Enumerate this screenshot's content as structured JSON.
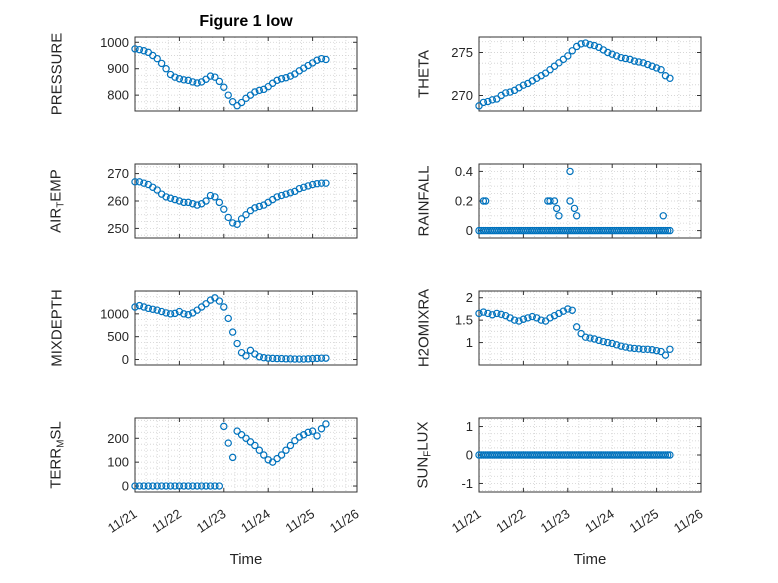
{
  "title": "Figure 1 low",
  "xlabel": "Time",
  "colors": {
    "marker": "#0072BD",
    "axis": "#262626",
    "grid": "#d6d6d6",
    "box": "#333333"
  },
  "x_axis": {
    "lim": [
      0,
      5
    ],
    "ticks": [
      0,
      1,
      2,
      3,
      4,
      5
    ],
    "tick_labels": [
      "11/21",
      "11/22",
      "11/23",
      "11/24",
      "11/25",
      "11/26"
    ],
    "minor_step": 0.25
  },
  "chart_data": [
    {
      "name": "pressure",
      "type": "scatter",
      "row": 0,
      "col": 0,
      "ylabel_parts": [
        [
          "PRESSURE",
          false
        ]
      ],
      "ylim": [
        740,
        1020
      ],
      "yticks": [
        800,
        900,
        1000
      ],
      "x_start": 0,
      "x_step": 0.1,
      "values": [
        975,
        972,
        968,
        962,
        950,
        938,
        920,
        900,
        878,
        868,
        862,
        858,
        856,
        850,
        846,
        850,
        860,
        872,
        868,
        852,
        830,
        800,
        775,
        760,
        772,
        788,
        800,
        812,
        818,
        822,
        832,
        845,
        856,
        862,
        866,
        872,
        880,
        892,
        902,
        912,
        922,
        932,
        938,
        935
      ]
    },
    {
      "name": "theta",
      "type": "scatter",
      "row": 0,
      "col": 1,
      "ylabel_parts": [
        [
          "THETA",
          false
        ]
      ],
      "ylim": [
        268.2,
        276.8
      ],
      "yticks": [
        270,
        275
      ],
      "x_start": 0,
      "x_step": 0.1,
      "values": [
        268.8,
        269.2,
        269.3,
        269.5,
        269.6,
        270,
        270.3,
        270.4,
        270.6,
        270.9,
        271.2,
        271.4,
        271.7,
        272,
        272.3,
        272.6,
        273,
        273.4,
        273.8,
        274.2,
        274.6,
        275.2,
        275.7,
        276,
        276.1,
        275.9,
        275.8,
        275.6,
        275.3,
        275,
        274.8,
        274.6,
        274.4,
        274.3,
        274.2,
        274,
        273.9,
        273.8,
        273.6,
        273.4,
        273.2,
        273,
        272.3,
        272
      ]
    },
    {
      "name": "air-temp",
      "type": "scatter",
      "row": 1,
      "col": 0,
      "ylabel_parts": [
        [
          "AIR",
          false
        ],
        [
          "T",
          true
        ],
        [
          "EMP",
          false
        ]
      ],
      "ylim": [
        246.5,
        273.5
      ],
      "yticks": [
        250,
        260,
        270
      ],
      "x_start": 0,
      "x_step": 0.1,
      "values": [
        267,
        267,
        266.5,
        266,
        265,
        264,
        262.5,
        261.5,
        261,
        260.5,
        260,
        259.5,
        259.5,
        259,
        258.5,
        259,
        260,
        262,
        261.5,
        259.5,
        257,
        254,
        252,
        251.5,
        253.5,
        255,
        256.5,
        257.5,
        258,
        258.5,
        259.5,
        260.5,
        261.5,
        262,
        262.5,
        263,
        263.5,
        264.5,
        265,
        265.5,
        266,
        266.3,
        266.5,
        266.5
      ]
    },
    {
      "name": "rainfall",
      "type": "scatter",
      "row": 1,
      "col": 1,
      "ylabel_parts": [
        [
          "RAINFALL",
          false
        ]
      ],
      "ylim": [
        -0.05,
        0.45
      ],
      "yticks": [
        0,
        0.2,
        0.4
      ],
      "zero_fill": {
        "from": 0,
        "to": 4.3,
        "step": 0.05
      },
      "points": [
        [
          0.1,
          0.2
        ],
        [
          0.15,
          0.2
        ],
        [
          1.55,
          0.2
        ],
        [
          1.6,
          0.2
        ],
        [
          1.7,
          0.2
        ],
        [
          1.75,
          0.15
        ],
        [
          1.8,
          0.1
        ],
        [
          2.05,
          0.4
        ],
        [
          2.05,
          0.2
        ],
        [
          2.15,
          0.15
        ],
        [
          2.2,
          0.1
        ],
        [
          4.15,
          0.1
        ]
      ]
    },
    {
      "name": "mixdepth",
      "type": "scatter",
      "row": 2,
      "col": 0,
      "ylabel_parts": [
        [
          "MIXDEPTH",
          false
        ]
      ],
      "ylim": [
        -120,
        1500
      ],
      "yticks": [
        0,
        500,
        1000
      ],
      "x_start": 0,
      "x_step": 0.1,
      "values": [
        1150,
        1180,
        1150,
        1120,
        1100,
        1080,
        1050,
        1020,
        1000,
        1010,
        1050,
        1000,
        980,
        1020,
        1080,
        1150,
        1220,
        1300,
        1350,
        1280,
        1150,
        900,
        600,
        350,
        150,
        80,
        200,
        120,
        60,
        40,
        30,
        25,
        20,
        20,
        15,
        15,
        10,
        10,
        10,
        15,
        20,
        25,
        30,
        30
      ]
    },
    {
      "name": "h2omixra",
      "type": "scatter",
      "row": 2,
      "col": 1,
      "ylabel_parts": [
        [
          "H2OMIXRA",
          false
        ]
      ],
      "ylim": [
        0.5,
        2.15
      ],
      "yticks": [
        1,
        1.5,
        2
      ],
      "x_start": 0,
      "x_step": 0.1,
      "values": [
        1.65,
        1.68,
        1.65,
        1.62,
        1.65,
        1.63,
        1.6,
        1.55,
        1.5,
        1.48,
        1.52,
        1.55,
        1.58,
        1.55,
        1.5,
        1.48,
        1.55,
        1.6,
        1.65,
        1.7,
        1.75,
        1.72,
        1.35,
        1.2,
        1.12,
        1.1,
        1.08,
        1.05,
        1.02,
        1,
        0.98,
        0.95,
        0.92,
        0.9,
        0.88,
        0.87,
        0.86,
        0.85,
        0.85,
        0.84,
        0.82,
        0.8,
        0.72,
        0.85
      ]
    },
    {
      "name": "terr-msl",
      "type": "scatter",
      "row": 3,
      "col": 0,
      "ylabel_parts": [
        [
          "TERR",
          false
        ],
        [
          "M",
          true
        ],
        [
          "SL",
          false
        ]
      ],
      "ylim": [
        -25,
        285
      ],
      "yticks": [
        0,
        100,
        200
      ],
      "x_start": 0,
      "x_step": 0.1,
      "values": [
        0,
        0,
        0,
        0,
        0,
        0,
        0,
        0,
        0,
        0,
        0,
        0,
        0,
        0,
        0,
        0,
        0,
        0,
        0,
        0,
        250,
        180,
        120,
        230,
        215,
        200,
        185,
        170,
        150,
        130,
        110,
        100,
        115,
        130,
        150,
        170,
        190,
        205,
        215,
        225,
        230,
        210,
        240,
        260
      ]
    },
    {
      "name": "sun-flux",
      "type": "scatter",
      "row": 3,
      "col": 1,
      "ylabel_parts": [
        [
          "SUN",
          false
        ],
        [
          "F",
          true
        ],
        [
          "LUX",
          false
        ]
      ],
      "ylim": [
        -1.3,
        1.3
      ],
      "yticks": [
        -1,
        0,
        1
      ],
      "zero_fill": {
        "from": 0,
        "to": 4.3,
        "step": 0.05
      },
      "points": []
    }
  ]
}
